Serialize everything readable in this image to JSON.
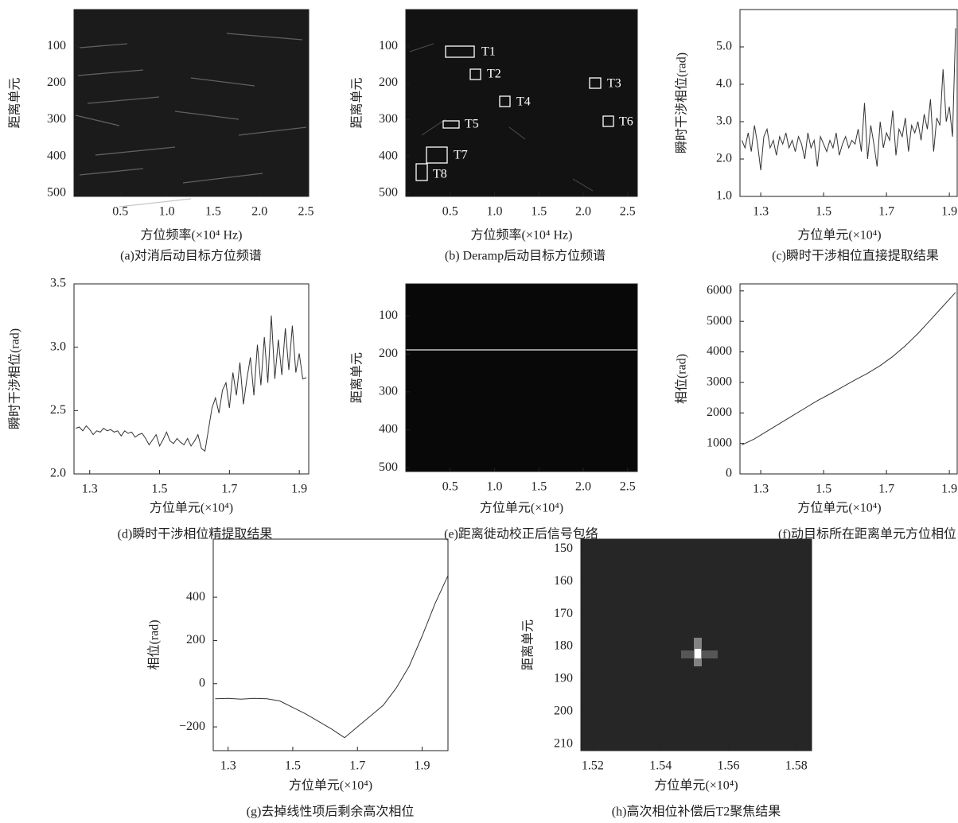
{
  "chart_data": [
    {
      "type": "image",
      "caption": "(a)对消后动目标方位频谱",
      "x_label": "方位频率(×10⁴ Hz)",
      "y_label": "距离单元",
      "xlim": [
        0,
        2.53
      ],
      "ylim": [
        0,
        509
      ],
      "y_inverted": true,
      "xticks": [
        0.5,
        {
          "value": 1,
          "label": "1.0"
        },
        1.5,
        {
          "value": 2,
          "label": "2.0"
        },
        2.5
      ],
      "yticks": [
        100,
        200,
        300,
        400,
        500
      ]
    },
    {
      "type": "image",
      "caption": "(b) Deramp后动目标方位频谱",
      "x_label": "方位频率(×10⁴ Hz)",
      "y_label": "距离单元",
      "xlim": [
        0,
        2.61
      ],
      "ylim": [
        0,
        509
      ],
      "y_inverted": true,
      "xticks": [
        0.5,
        {
          "value": 1,
          "label": "1.0"
        },
        1.5,
        {
          "value": 2,
          "label": "2.0"
        },
        2.5
      ],
      "yticks": [
        100,
        200,
        300,
        400,
        500
      ],
      "annotations": [
        "T1",
        "T2",
        "T3",
        "T4",
        "T5",
        "T6",
        "T7",
        "T8"
      ]
    },
    {
      "type": "line",
      "caption": "(c)瞬时干涉相位直接提取结果",
      "x_label": "方位单元(×10⁴)",
      "y_label": "瞬时干涉相位(rad)",
      "color": "#333333",
      "xlim": [
        1.234,
        1.925
      ],
      "ylim": [
        1,
        6
      ],
      "xticks": [
        1.3,
        1.5,
        1.7,
        1.9
      ],
      "yticks": [
        {
          "value": 1,
          "label": "1.0"
        },
        {
          "value": 2,
          "label": "2.0"
        },
        {
          "value": 3,
          "label": "3.0"
        },
        {
          "value": 4,
          "label": "4.0"
        },
        {
          "value": 5,
          "label": "5.0"
        }
      ],
      "x": [
        1.24,
        1.25,
        1.26,
        1.27,
        1.28,
        1.29,
        1.3,
        1.31,
        1.32,
        1.33,
        1.34,
        1.35,
        1.36,
        1.37,
        1.38,
        1.39,
        1.4,
        1.41,
        1.42,
        1.43,
        1.44,
        1.45,
        1.46,
        1.47,
        1.48,
        1.49,
        1.5,
        1.51,
        1.52,
        1.53,
        1.54,
        1.55,
        1.56,
        1.57,
        1.58,
        1.59,
        1.6,
        1.61,
        1.62,
        1.63,
        1.64,
        1.65,
        1.66,
        1.67,
        1.68,
        1.69,
        1.7,
        1.71,
        1.72,
        1.73,
        1.74,
        1.75,
        1.76,
        1.77,
        1.78,
        1.79,
        1.8,
        1.81,
        1.82,
        1.83,
        1.84,
        1.85,
        1.86,
        1.87,
        1.88,
        1.89,
        1.9,
        1.91,
        1.92
      ],
      "values": [
        2.5,
        2.3,
        2.7,
        2.2,
        2.9,
        2.4,
        1.7,
        2.6,
        2.8,
        2.3,
        2.5,
        2.1,
        2.6,
        2.4,
        2.7,
        2.3,
        2.5,
        2.2,
        2.6,
        2.4,
        2.0,
        2.7,
        2.3,
        2.5,
        1.8,
        2.6,
        2.4,
        2.2,
        2.5,
        2.3,
        2.7,
        2.1,
        2.4,
        2.6,
        2.3,
        2.5,
        2.4,
        2.8,
        2.2,
        3.5,
        2.0,
        2.9,
        2.4,
        1.8,
        3.0,
        2.3,
        2.7,
        2.5,
        3.3,
        2.1,
        2.8,
        2.6,
        3.1,
        2.2,
        2.9,
        2.7,
        3.0,
        2.5,
        3.2,
        2.8,
        3.6,
        2.2,
        3.1,
        2.9,
        4.4,
        3.0,
        3.4,
        2.6,
        5.5
      ]
    },
    {
      "type": "line",
      "caption": "(d)瞬时干涉相位精提取结果",
      "x_label": "方位单元(×10⁴)",
      "y_label": "瞬时干涉相位(rad)",
      "color": "#333333",
      "xlim": [
        1.255,
        1.927
      ],
      "ylim": [
        2,
        3.5
      ],
      "xticks": [
        1.3,
        1.5,
        1.7,
        1.9
      ],
      "yticks": [
        {
          "value": 2,
          "label": "2.0"
        },
        2.5,
        {
          "value": 3,
          "label": "3.0"
        },
        3.5
      ],
      "x": [
        1.26,
        1.27,
        1.28,
        1.29,
        1.3,
        1.31,
        1.32,
        1.33,
        1.34,
        1.35,
        1.36,
        1.37,
        1.38,
        1.39,
        1.4,
        1.41,
        1.42,
        1.43,
        1.44,
        1.45,
        1.46,
        1.47,
        1.48,
        1.49,
        1.5,
        1.51,
        1.52,
        1.53,
        1.54,
        1.55,
        1.56,
        1.57,
        1.58,
        1.59,
        1.6,
        1.61,
        1.62,
        1.63,
        1.64,
        1.65,
        1.66,
        1.67,
        1.68,
        1.69,
        1.7,
        1.71,
        1.72,
        1.73,
        1.74,
        1.75,
        1.76,
        1.77,
        1.78,
        1.79,
        1.8,
        1.81,
        1.82,
        1.83,
        1.84,
        1.85,
        1.86,
        1.87,
        1.88,
        1.89,
        1.9,
        1.91,
        1.92
      ],
      "values": [
        2.36,
        2.37,
        2.34,
        2.38,
        2.35,
        2.31,
        2.34,
        2.33,
        2.36,
        2.34,
        2.35,
        2.33,
        2.34,
        2.3,
        2.34,
        2.32,
        2.33,
        2.29,
        2.31,
        2.32,
        2.28,
        2.23,
        2.27,
        2.31,
        2.22,
        2.27,
        2.33,
        2.26,
        2.24,
        2.28,
        2.25,
        2.23,
        2.28,
        2.22,
        2.26,
        2.31,
        2.2,
        2.18,
        2.35,
        2.52,
        2.6,
        2.48,
        2.66,
        2.72,
        2.52,
        2.8,
        2.62,
        2.88,
        2.55,
        2.75,
        2.92,
        2.62,
        3.02,
        2.7,
        3.08,
        2.72,
        3.25,
        2.75,
        3.06,
        2.78,
        3.15,
        2.82,
        3.17,
        2.8,
        2.95,
        2.75,
        2.76
      ]
    },
    {
      "type": "image",
      "caption": "(e)距离徙动校正后信号包络",
      "x_label": "方位单元(×10⁴)",
      "y_label": "距离单元",
      "xlim": [
        0,
        2.61
      ],
      "ylim": [
        15,
        510
      ],
      "y_inverted": true,
      "xticks": [
        0.5,
        {
          "value": 1,
          "label": "1.0"
        },
        1.5,
        {
          "value": 2,
          "label": "2.0"
        },
        2.5
      ],
      "yticks": [
        100,
        200,
        300,
        400,
        500
      ]
    },
    {
      "type": "line",
      "caption": "(f)动目标所在距离单元方位相位",
      "x_label": "方位单元(×10⁴)",
      "y_label": "相位(rad)",
      "color": "#333333",
      "xlim": [
        1.234,
        1.925
      ],
      "ylim": [
        0,
        6230
      ],
      "xticks": [
        1.3,
        1.5,
        1.7,
        1.9
      ],
      "yticks": [
        0,
        1000,
        2000,
        3000,
        4000,
        5000,
        6000
      ],
      "x": [
        1.24,
        1.28,
        1.32,
        1.36,
        1.4,
        1.44,
        1.48,
        1.52,
        1.56,
        1.6,
        1.64,
        1.68,
        1.72,
        1.76,
        1.8,
        1.84,
        1.88,
        1.92
      ],
      "values": [
        950,
        1150,
        1400,
        1650,
        1900,
        2150,
        2400,
        2620,
        2850,
        3080,
        3300,
        3550,
        3850,
        4200,
        4600,
        5050,
        5500,
        5950
      ]
    },
    {
      "type": "line",
      "caption": "(g)去掉线性项后剩余高次相位",
      "x_label": "方位单元(×10⁴)",
      "y_label": "相位(rad)",
      "color": "#333333",
      "xlim": [
        1.254,
        1.98
      ],
      "ylim": [
        -310,
        669
      ],
      "xticks": [
        1.3,
        1.5,
        1.7,
        1.9
      ],
      "yticks": [
        {
          "value": -200,
          "label": "−200"
        },
        0,
        200,
        400
      ],
      "x": [
        1.26,
        1.3,
        1.34,
        1.38,
        1.42,
        1.46,
        1.5,
        1.54,
        1.58,
        1.62,
        1.66,
        1.7,
        1.74,
        1.78,
        1.82,
        1.86,
        1.9,
        1.94,
        1.98
      ],
      "values": [
        -70,
        -68,
        -72,
        -68,
        -70,
        -80,
        -110,
        -140,
        -175,
        -210,
        -250,
        -200,
        -150,
        -100,
        -20,
        80,
        220,
        370,
        500
      ]
    },
    {
      "type": "image",
      "caption": "(h)高次相位补偿后T2聚焦结果",
      "x_label": "方位单元(×10⁴)",
      "y_label": "距离单元",
      "xlim": [
        1.5165,
        1.5845
      ],
      "ylim": [
        147,
        212
      ],
      "y_inverted": true,
      "xticks": [
        1.52,
        1.54,
        1.56,
        1.58
      ],
      "yticks": [
        150,
        160,
        170,
        180,
        190,
        200,
        210
      ]
    }
  ]
}
